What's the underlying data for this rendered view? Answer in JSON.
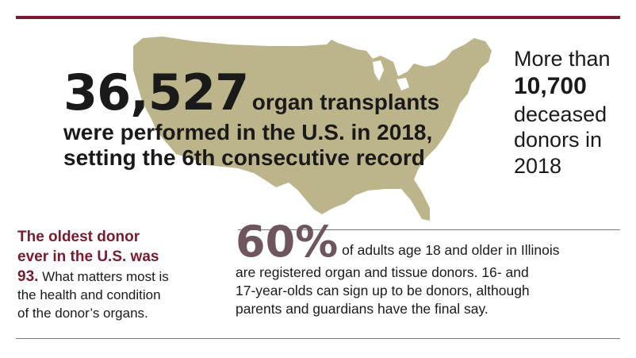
{
  "colors": {
    "accent": "#7a1a2e",
    "map_fill": "#bcb58c",
    "percent": "#6e5560",
    "text": "#1a1a1a"
  },
  "headline": {
    "number": "36,527",
    "text_line1": "organ transplants",
    "text_line2": "were performed in the U.S. in 2018,",
    "text_line3": "setting the 6th consecutive record"
  },
  "right_stat": {
    "lead": "More than",
    "number": "10,700",
    "line1": "deceased",
    "line2": "donors in",
    "line3": "2018"
  },
  "left_fact": {
    "accent_line1": "The oldest donor",
    "accent_line2": "ever in the U.S. was",
    "accent_number": "93.",
    "text_line1": "What matters most is",
    "text_line2": "the health and condition",
    "text_line3": "of the donor’s organs."
  },
  "percent_fact": {
    "number": "60%",
    "line1": "of adults age 18 and older in Illinois",
    "line2": "are registered organ and tissue donors. 16- and",
    "line3": "17-year-olds can sign up to be donors, although",
    "line4": "parents and guardians have the final say."
  }
}
